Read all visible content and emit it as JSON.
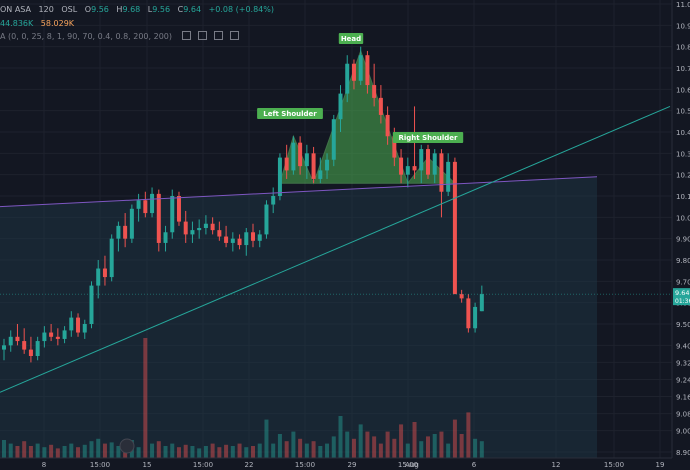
{
  "legend": {
    "symbol": "ON ASA",
    "interval": "120",
    "exchange": "OSL",
    "open_label": "O",
    "open": "9.56",
    "high_label": "H",
    "high": "9.68",
    "low_label": "L",
    "low": "9.56",
    "close_label": "C",
    "close": "9.64",
    "change": "+0.08 (+0.84%)",
    "vol_buy": "44.836K",
    "vol_sell": "58.029K",
    "indicator": "A (0, 0, 25, 8, 1, 90, 70, 0.4, 0.8, 200, 200)"
  },
  "price_axis": {
    "labels": [
      "11.00",
      "10.90",
      "10.80",
      "10.70",
      "10.60",
      "10.50",
      "10.40",
      "10.30",
      "10.20",
      "10.10",
      "10.00",
      "9.90",
      "9.80",
      "9.70",
      "9.60",
      "9.50",
      "9.40",
      "9.32",
      "9.24",
      "9.16",
      "9.08",
      "9.00",
      "8.90"
    ],
    "current_price": "9.64",
    "countdown": "01:36"
  },
  "time_axis": {
    "labels": [
      "8",
      "15:00",
      "15",
      "15:00",
      "22",
      "15:00",
      "29",
      "15:00",
      "Aug",
      "6",
      "12",
      "15:00",
      "19"
    ]
  },
  "patterns": {
    "left_shoulder": "Left Shoulder",
    "head": "Head",
    "right_shoulder": "Right Shoulder"
  },
  "colors": {
    "background": "#131722",
    "up": "#26a69a",
    "down": "#ef5350",
    "pattern_fill": "#4caf50",
    "neckline": "#7e57c2",
    "trendline": "#26a69a"
  },
  "chart_data": {
    "type": "candlestick",
    "ylim": [
      8.88,
      11.0
    ],
    "bars": [
      {
        "o": 9.38,
        "h": 9.43,
        "l": 9.33,
        "c": 9.4
      },
      {
        "o": 9.4,
        "h": 9.47,
        "l": 9.37,
        "c": 9.44
      },
      {
        "o": 9.44,
        "h": 9.5,
        "l": 9.4,
        "c": 9.42
      },
      {
        "o": 9.42,
        "h": 9.48,
        "l": 9.36,
        "c": 9.38
      },
      {
        "o": 9.38,
        "h": 9.44,
        "l": 9.32,
        "c": 9.35
      },
      {
        "o": 9.35,
        "h": 9.44,
        "l": 9.33,
        "c": 9.42
      },
      {
        "o": 9.42,
        "h": 9.49,
        "l": 9.39,
        "c": 9.46
      },
      {
        "o": 9.46,
        "h": 9.5,
        "l": 9.42,
        "c": 9.44
      },
      {
        "o": 9.44,
        "h": 9.48,
        "l": 9.4,
        "c": 9.43
      },
      {
        "o": 9.43,
        "h": 9.49,
        "l": 9.41,
        "c": 9.47
      },
      {
        "o": 9.47,
        "h": 9.56,
        "l": 9.44,
        "c": 9.53
      },
      {
        "o": 9.53,
        "h": 9.55,
        "l": 9.44,
        "c": 9.46
      },
      {
        "o": 9.46,
        "h": 9.52,
        "l": 9.43,
        "c": 9.5
      },
      {
        "o": 9.5,
        "h": 9.7,
        "l": 9.48,
        "c": 9.68
      },
      {
        "o": 9.68,
        "h": 9.8,
        "l": 9.62,
        "c": 9.76
      },
      {
        "o": 9.76,
        "h": 9.82,
        "l": 9.68,
        "c": 9.72
      },
      {
        "o": 9.72,
        "h": 9.92,
        "l": 9.7,
        "c": 9.9
      },
      {
        "o": 9.9,
        "h": 9.98,
        "l": 9.84,
        "c": 9.96
      },
      {
        "o": 9.96,
        "h": 10.02,
        "l": 9.86,
        "c": 9.9
      },
      {
        "o": 9.9,
        "h": 10.06,
        "l": 9.88,
        "c": 10.04
      },
      {
        "o": 10.04,
        "h": 10.11,
        "l": 9.98,
        "c": 10.08
      },
      {
        "o": 10.08,
        "h": 10.12,
        "l": 10.0,
        "c": 10.02
      },
      {
        "o": 10.02,
        "h": 10.14,
        "l": 10.0,
        "c": 10.11
      },
      {
        "o": 10.11,
        "h": 10.13,
        "l": 9.84,
        "c": 9.88
      },
      {
        "o": 9.88,
        "h": 9.96,
        "l": 9.84,
        "c": 9.93
      },
      {
        "o": 9.93,
        "h": 10.13,
        "l": 9.9,
        "c": 10.1
      },
      {
        "o": 10.1,
        "h": 10.12,
        "l": 9.96,
        "c": 9.98
      },
      {
        "o": 9.98,
        "h": 10.03,
        "l": 9.88,
        "c": 9.92
      },
      {
        "o": 9.92,
        "h": 9.98,
        "l": 9.88,
        "c": 9.94
      },
      {
        "o": 9.94,
        "h": 9.99,
        "l": 9.9,
        "c": 9.95
      },
      {
        "o": 9.95,
        "h": 10.01,
        "l": 9.92,
        "c": 9.97
      },
      {
        "o": 9.97,
        "h": 10.0,
        "l": 9.92,
        "c": 9.94
      },
      {
        "o": 9.94,
        "h": 9.98,
        "l": 9.89,
        "c": 9.91
      },
      {
        "o": 9.91,
        "h": 9.96,
        "l": 9.86,
        "c": 9.88
      },
      {
        "o": 9.88,
        "h": 9.93,
        "l": 9.84,
        "c": 9.9
      },
      {
        "o": 9.9,
        "h": 9.92,
        "l": 9.85,
        "c": 9.87
      },
      {
        "o": 9.87,
        "h": 9.95,
        "l": 9.82,
        "c": 9.93
      },
      {
        "o": 9.93,
        "h": 9.97,
        "l": 9.86,
        "c": 9.89
      },
      {
        "o": 9.89,
        "h": 9.94,
        "l": 9.86,
        "c": 9.92
      },
      {
        "o": 9.92,
        "h": 10.08,
        "l": 9.9,
        "c": 10.06
      },
      {
        "o": 10.06,
        "h": 10.14,
        "l": 10.02,
        "c": 10.1
      },
      {
        "o": 10.1,
        "h": 10.3,
        "l": 10.08,
        "c": 10.28
      },
      {
        "o": 10.28,
        "h": 10.34,
        "l": 10.18,
        "c": 10.22
      },
      {
        "o": 10.22,
        "h": 10.38,
        "l": 10.2,
        "c": 10.35
      },
      {
        "o": 10.35,
        "h": 10.38,
        "l": 10.2,
        "c": 10.24
      },
      {
        "o": 10.24,
        "h": 10.34,
        "l": 10.18,
        "c": 10.3
      },
      {
        "o": 10.3,
        "h": 10.33,
        "l": 10.16,
        "c": 10.18
      },
      {
        "o": 10.18,
        "h": 10.28,
        "l": 10.16,
        "c": 10.22
      },
      {
        "o": 10.22,
        "h": 10.3,
        "l": 10.18,
        "c": 10.27
      },
      {
        "o": 10.27,
        "h": 10.48,
        "l": 10.24,
        "c": 10.46
      },
      {
        "o": 10.46,
        "h": 10.62,
        "l": 10.4,
        "c": 10.58
      },
      {
        "o": 10.58,
        "h": 10.76,
        "l": 10.54,
        "c": 10.72
      },
      {
        "o": 10.72,
        "h": 10.74,
        "l": 10.6,
        "c": 10.64
      },
      {
        "o": 10.64,
        "h": 10.8,
        "l": 10.62,
        "c": 10.76
      },
      {
        "o": 10.76,
        "h": 10.78,
        "l": 10.58,
        "c": 10.62
      },
      {
        "o": 10.62,
        "h": 10.72,
        "l": 10.52,
        "c": 10.56
      },
      {
        "o": 10.56,
        "h": 10.62,
        "l": 10.44,
        "c": 10.48
      },
      {
        "o": 10.48,
        "h": 10.52,
        "l": 10.34,
        "c": 10.38
      },
      {
        "o": 10.38,
        "h": 10.42,
        "l": 10.24,
        "c": 10.28
      },
      {
        "o": 10.28,
        "h": 10.32,
        "l": 10.16,
        "c": 10.2
      },
      {
        "o": 10.2,
        "h": 10.28,
        "l": 10.14,
        "c": 10.24
      },
      {
        "o": 10.24,
        "h": 10.52,
        "l": 10.18,
        "c": 10.22
      },
      {
        "o": 10.22,
        "h": 10.34,
        "l": 10.16,
        "c": 10.32
      },
      {
        "o": 10.32,
        "h": 10.34,
        "l": 10.18,
        "c": 10.2
      },
      {
        "o": 10.2,
        "h": 10.32,
        "l": 10.16,
        "c": 10.3
      },
      {
        "o": 10.3,
        "h": 10.32,
        "l": 10.0,
        "c": 10.12
      },
      {
        "o": 10.12,
        "h": 10.3,
        "l": 10.1,
        "c": 10.26
      },
      {
        "o": 10.26,
        "h": 10.28,
        "l": 9.66,
        "c": 9.64
      },
      {
        "o": 9.64,
        "h": 9.66,
        "l": 9.6,
        "c": 9.62
      },
      {
        "o": 9.62,
        "h": 9.64,
        "l": 9.46,
        "c": 9.48
      },
      {
        "o": 9.48,
        "h": 9.6,
        "l": 9.46,
        "c": 9.58
      },
      {
        "o": 9.56,
        "h": 9.68,
        "l": 9.56,
        "c": 9.64
      }
    ],
    "volumes": [
      0.15,
      0.12,
      0.1,
      0.14,
      0.1,
      0.12,
      0.09,
      0.11,
      0.08,
      0.1,
      0.12,
      0.09,
      0.11,
      0.14,
      0.16,
      0.12,
      0.13,
      0.1,
      0.12,
      0.15,
      0.09,
      1.0,
      0.12,
      0.14,
      0.1,
      0.12,
      0.09,
      0.11,
      0.1,
      0.08,
      0.1,
      0.12,
      0.09,
      0.11,
      0.1,
      0.12,
      0.09,
      0.1,
      0.12,
      0.32,
      0.12,
      0.2,
      0.14,
      0.22,
      0.16,
      0.12,
      0.14,
      0.1,
      0.12,
      0.18,
      0.35,
      0.22,
      0.16,
      0.28,
      0.22,
      0.18,
      0.12,
      0.22,
      0.16,
      0.28,
      0.12,
      0.3,
      0.14,
      0.18,
      0.2,
      0.22,
      0.12,
      0.32,
      0.2,
      0.38,
      0.16,
      0.14
    ]
  }
}
